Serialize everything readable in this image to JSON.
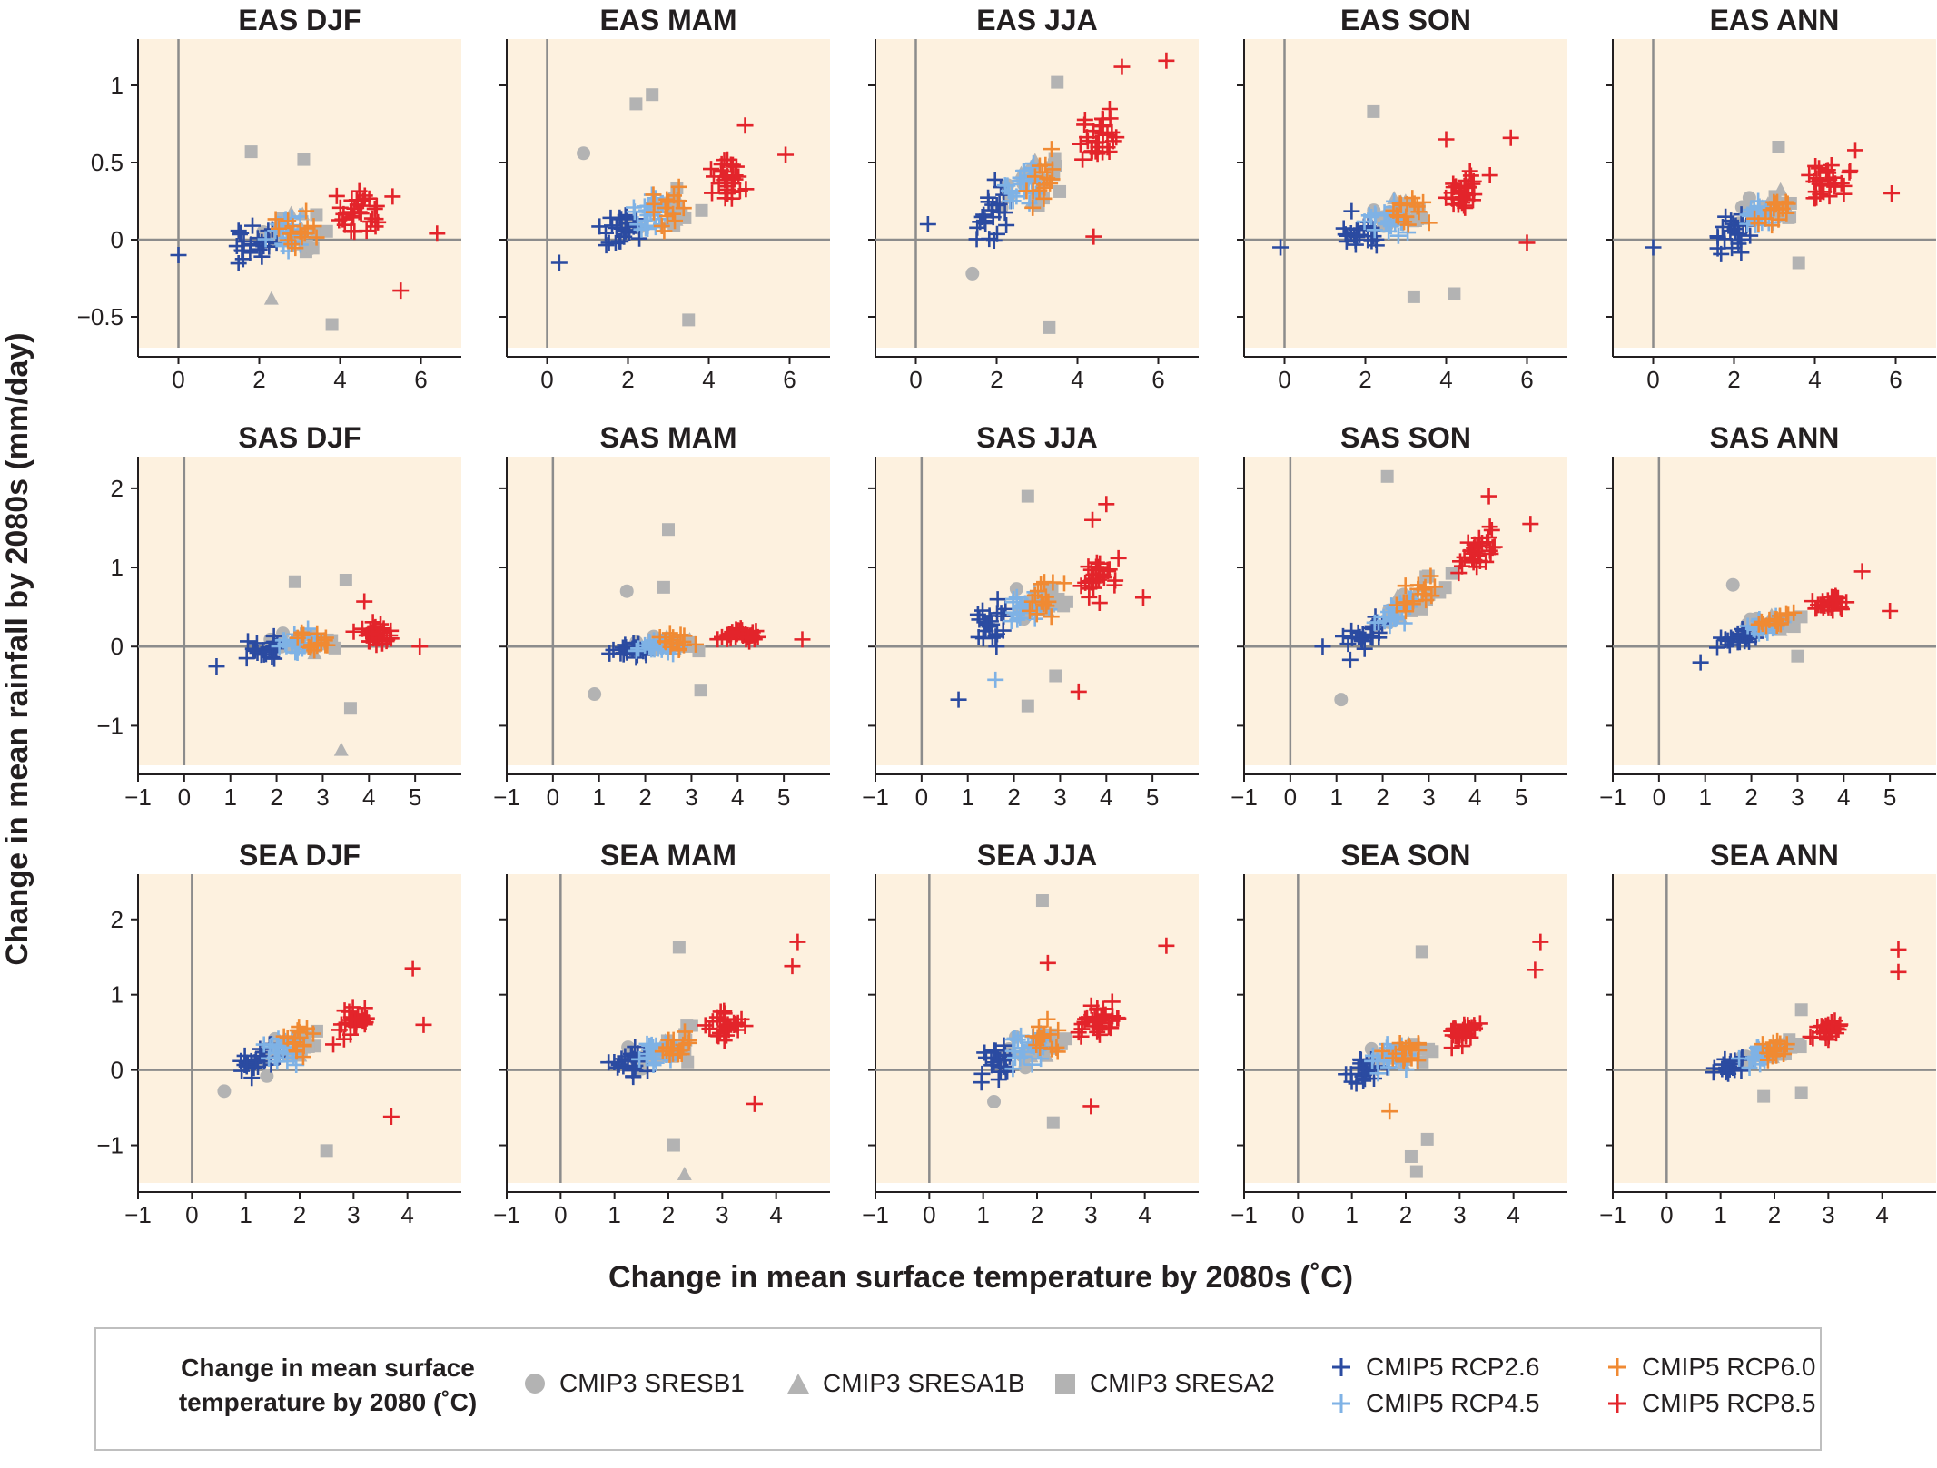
{
  "figure": {
    "ylabel": "Change in mean rainfall by 2080s (mm/day)",
    "xlabel": "Change in mean surface temperature by 2080s (˚C)"
  },
  "legend": {
    "title": "Change in mean surface temperature by 2080 (˚C)",
    "items": [
      {
        "key": "sresb1",
        "label": "CMIP3 SRESB1",
        "marker": "circle",
        "color": "#b3b3b3"
      },
      {
        "key": "sresa1b",
        "label": "CMIP3 SRESA1B",
        "marker": "triangle",
        "color": "#b3b3b3"
      },
      {
        "key": "sresa2",
        "label": "CMIP3 SRESA2",
        "marker": "square",
        "color": "#b3b3b3"
      },
      {
        "key": "rcp26",
        "label": "CMIP5 RCP2.6",
        "marker": "plus",
        "color": "#2b4ba1"
      },
      {
        "key": "rcp45",
        "label": "CMIP5 RCP4.5",
        "marker": "plus",
        "color": "#7fb2e5"
      },
      {
        "key": "rcp60",
        "label": "CMIP5 RCP6.0",
        "marker": "plus",
        "color": "#f08a33"
      },
      {
        "key": "rcp85",
        "label": "CMIP5 RCP8.5",
        "marker": "plus",
        "color": "#e3242b"
      }
    ]
  },
  "chart_data": [
    {
      "type": "scatter",
      "title": "EAS DJF",
      "xlim": [
        -1,
        7
      ],
      "ylim": [
        -0.7,
        1.3
      ],
      "xticks": [
        0,
        2,
        4,
        6
      ],
      "yticks": [
        -0.5,
        0,
        0.5,
        1
      ],
      "yticklabels": [
        "−0.5",
        "0",
        "0.5",
        "1"
      ],
      "spread": {
        "tc": 3.0,
        "tw": 1.3,
        "tmin": 0.0,
        "rc": 0.05,
        "rw": 0.2,
        "slope": 0.0
      },
      "extremes": [
        {
          "series": "rcp26",
          "x": 0,
          "y": -0.1
        },
        {
          "series": "sresa2",
          "x": 1.8,
          "y": 0.57
        },
        {
          "series": "sresa2",
          "x": 3.1,
          "y": 0.52
        },
        {
          "series": "sresa2",
          "x": 3.8,
          "y": -0.55
        },
        {
          "series": "sresa1b",
          "x": 2.3,
          "y": -0.38
        },
        {
          "series": "rcp85",
          "x": 6.4,
          "y": 0.04
        },
        {
          "series": "rcp85",
          "x": 5.5,
          "y": -0.33
        },
        {
          "series": "rcp85",
          "x": 5.3,
          "y": 0.28
        }
      ]
    },
    {
      "type": "scatter",
      "title": "EAS MAM",
      "xlim": [
        -1,
        7
      ],
      "ylim": [
        -0.7,
        1.3
      ],
      "xticks": [
        0,
        2,
        4,
        6
      ],
      "yticks": [
        -0.5,
        0,
        0.5,
        1
      ],
      "yticklabels": [
        "−0.5",
        "0",
        "0.5",
        "1"
      ],
      "spread": {
        "tc": 3.0,
        "tw": 1.3,
        "tmin": 0.2,
        "rc": 0.2,
        "rw": 0.2,
        "slope": 0.05
      },
      "extremes": [
        {
          "series": "sresa2",
          "x": 2.6,
          "y": 0.94
        },
        {
          "series": "sresa2",
          "x": 2.2,
          "y": 0.88
        },
        {
          "series": "sresa2",
          "x": 3.5,
          "y": -0.52
        },
        {
          "series": "rcp85",
          "x": 4.9,
          "y": 0.74
        },
        {
          "series": "rcp85",
          "x": 5.9,
          "y": 0.55
        },
        {
          "series": "sresb1",
          "x": 0.9,
          "y": 0.56
        },
        {
          "series": "rcp26",
          "x": 0.3,
          "y": -0.15
        }
      ]
    },
    {
      "type": "scatter",
      "title": "EAS JJA",
      "xlim": [
        -1,
        7
      ],
      "ylim": [
        -0.7,
        1.3
      ],
      "xticks": [
        0,
        2,
        4,
        6
      ],
      "yticks": [
        -0.5,
        0,
        0.5,
        1
      ],
      "yticklabels": [
        "−0.5",
        "0",
        "0.5",
        "1"
      ],
      "spread": {
        "tc": 3.1,
        "tw": 1.3,
        "tmin": 0.3,
        "rc": 0.4,
        "rw": 0.25,
        "slope": 0.12
      },
      "extremes": [
        {
          "series": "rcp85",
          "x": 6.2,
          "y": 1.16
        },
        {
          "series": "rcp85",
          "x": 5.1,
          "y": 1.12
        },
        {
          "series": "sresa2",
          "x": 3.5,
          "y": 1.02
        },
        {
          "series": "sresa2",
          "x": 3.3,
          "y": -0.57
        },
        {
          "series": "sresb1",
          "x": 1.4,
          "y": -0.22
        },
        {
          "series": "rcp26",
          "x": 0.3,
          "y": 0.1
        },
        {
          "series": "rcp85",
          "x": 4.4,
          "y": 0.02
        }
      ]
    },
    {
      "type": "scatter",
      "title": "EAS SON",
      "xlim": [
        -1,
        7
      ],
      "ylim": [
        -0.7,
        1.3
      ],
      "xticks": [
        0,
        2,
        4,
        6
      ],
      "yticks": [
        -0.5,
        0,
        0.5,
        1
      ],
      "yticklabels": [
        "−0.5",
        "0",
        "0.5",
        "1"
      ],
      "spread": {
        "tc": 3.0,
        "tw": 1.3,
        "tmin": 0.0,
        "rc": 0.15,
        "rw": 0.2,
        "slope": 0.03
      },
      "extremes": [
        {
          "series": "sresa2",
          "x": 2.2,
          "y": 0.83
        },
        {
          "series": "sresa2",
          "x": 3.2,
          "y": -0.37
        },
        {
          "series": "sresa2",
          "x": 4.2,
          "y": -0.35
        },
        {
          "series": "rcp85",
          "x": 5.6,
          "y": 0.66
        },
        {
          "series": "rcp85",
          "x": 4.0,
          "y": 0.65
        },
        {
          "series": "rcp26",
          "x": -0.1,
          "y": -0.05
        },
        {
          "series": "rcp85",
          "x": 6.0,
          "y": -0.02
        }
      ]
    },
    {
      "type": "scatter",
      "title": "EAS ANN",
      "xlim": [
        -1,
        7
      ],
      "ylim": [
        -0.7,
        1.3
      ],
      "xticks": [
        0,
        2,
        4,
        6
      ],
      "yticks": [
        -0.5,
        0,
        0.5,
        1
      ],
      "yticklabels": [
        "−0.5",
        "0",
        "0.5",
        "1"
      ],
      "spread": {
        "tc": 3.0,
        "tw": 1.2,
        "tmin": 0.0,
        "rc": 0.18,
        "rw": 0.15,
        "slope": 0.06
      },
      "extremes": [
        {
          "series": "sresa2",
          "x": 3.1,
          "y": 0.6
        },
        {
          "series": "rcp85",
          "x": 5.0,
          "y": 0.58
        },
        {
          "series": "rcp85",
          "x": 5.9,
          "y": 0.3
        },
        {
          "series": "rcp26",
          "x": 0.0,
          "y": -0.05
        },
        {
          "series": "sresa2",
          "x": 3.6,
          "y": -0.15
        }
      ]
    },
    {
      "type": "scatter",
      "title": "SAS DJF",
      "xlim": [
        -1,
        6
      ],
      "ylim": [
        -1.5,
        2.4
      ],
      "xticks": [
        -1,
        0,
        1,
        2,
        3,
        4,
        5
      ],
      "xticklabels": [
        "−1",
        "0",
        "1",
        "2",
        "3",
        "4",
        "5"
      ],
      "yticks": [
        -1,
        0,
        1,
        2
      ],
      "yticklabels": [
        "−1",
        "0",
        "1",
        "2"
      ],
      "spread": {
        "tc": 2.8,
        "tw": 1.2,
        "tmin": 0.7,
        "rc": 0.05,
        "rw": 0.22,
        "slope": 0.0
      },
      "extremes": [
        {
          "series": "sresa1b",
          "x": 3.4,
          "y": -1.3
        },
        {
          "series": "sresa2",
          "x": 3.6,
          "y": -0.78
        },
        {
          "series": "sresa2",
          "x": 2.4,
          "y": 0.82
        },
        {
          "series": "sresa2",
          "x": 3.5,
          "y": 0.84
        },
        {
          "series": "rcp85",
          "x": 3.9,
          "y": 0.57
        },
        {
          "series": "rcp85",
          "x": 5.1,
          "y": 0.0
        },
        {
          "series": "rcp26",
          "x": 0.7,
          "y": -0.25
        }
      ]
    },
    {
      "type": "scatter",
      "title": "SAS MAM",
      "xlim": [
        -1,
        6
      ],
      "ylim": [
        -1.5,
        2.4
      ],
      "xticks": [
        -1,
        0,
        1,
        2,
        3,
        4,
        5
      ],
      "xticklabels": [
        "−1",
        "0",
        "1",
        "2",
        "3",
        "4",
        "5"
      ],
      "yticks": [
        -1,
        0,
        1,
        2
      ],
      "yticklabels": [
        "−1",
        "0",
        "1",
        "2"
      ],
      "spread": {
        "tc": 2.7,
        "tw": 1.2,
        "tmin": 0.5,
        "rc": 0.02,
        "rw": 0.15,
        "slope": 0.0
      },
      "extremes": [
        {
          "series": "sresa2",
          "x": 2.5,
          "y": 1.48
        },
        {
          "series": "sresa2",
          "x": 2.4,
          "y": 0.75
        },
        {
          "series": "sresb1",
          "x": 1.6,
          "y": 0.7
        },
        {
          "series": "sresb1",
          "x": 0.9,
          "y": -0.6
        },
        {
          "series": "rcp85",
          "x": 5.4,
          "y": 0.09
        },
        {
          "series": "sresa2",
          "x": 3.2,
          "y": -0.55
        }
      ]
    },
    {
      "type": "scatter",
      "title": "SAS JJA",
      "xlim": [
        -1,
        6
      ],
      "ylim": [
        -1.5,
        2.4
      ],
      "xticks": [
        -1,
        0,
        1,
        2,
        3,
        4,
        5
      ],
      "xticklabels": [
        "−1",
        "0",
        "1",
        "2",
        "3",
        "4",
        "5"
      ],
      "yticks": [
        -1,
        0,
        1,
        2
      ],
      "yticklabels": [
        "−1",
        "0",
        "1",
        "2"
      ],
      "spread": {
        "tc": 2.6,
        "tw": 1.1,
        "tmin": 0.5,
        "rc": 0.55,
        "rw": 0.35,
        "slope": 0.15
      },
      "extremes": [
        {
          "series": "sresa2",
          "x": 2.3,
          "y": 1.9
        },
        {
          "series": "rcp85",
          "x": 4.0,
          "y": 1.8
        },
        {
          "series": "rcp85",
          "x": 3.7,
          "y": 1.6
        },
        {
          "series": "rcp26",
          "x": 0.8,
          "y": -0.67
        },
        {
          "series": "rcp45",
          "x": 1.6,
          "y": -0.42
        },
        {
          "series": "sresa2",
          "x": 2.3,
          "y": -0.75
        },
        {
          "series": "sresa2",
          "x": 2.9,
          "y": -0.37
        },
        {
          "series": "rcp85",
          "x": 3.4,
          "y": -0.57
        },
        {
          "series": "rcp85",
          "x": 4.8,
          "y": 0.62
        }
      ]
    },
    {
      "type": "scatter",
      "title": "SAS SON",
      "xlim": [
        -1,
        6
      ],
      "ylim": [
        -1.5,
        2.4
      ],
      "xticks": [
        -1,
        0,
        1,
        2,
        3,
        4,
        5
      ],
      "xticklabels": [
        "−1",
        "0",
        "1",
        "2",
        "3",
        "4",
        "5"
      ],
      "yticks": [
        -1,
        0,
        1,
        2
      ],
      "yticklabels": [
        "−1",
        "0",
        "1",
        "2"
      ],
      "spread": {
        "tc": 2.7,
        "tw": 1.2,
        "tmin": 0.6,
        "rc": 0.6,
        "rw": 0.3,
        "slope": 0.35
      },
      "extremes": [
        {
          "series": "sresa2",
          "x": 2.1,
          "y": 2.15
        },
        {
          "series": "sresb1",
          "x": 1.1,
          "y": -0.67
        },
        {
          "series": "rcp85",
          "x": 5.2,
          "y": 1.55
        },
        {
          "series": "rcp85",
          "x": 4.3,
          "y": 1.9
        },
        {
          "series": "rcp26",
          "x": 0.7,
          "y": 0.0
        }
      ]
    },
    {
      "type": "scatter",
      "title": "SAS ANN",
      "xlim": [
        -1,
        6
      ],
      "ylim": [
        -1.5,
        2.4
      ],
      "xticks": [
        -1,
        0,
        1,
        2,
        3,
        4,
        5
      ],
      "xticklabels": [
        "−1",
        "0",
        "1",
        "2",
        "3",
        "4",
        "5"
      ],
      "yticks": [
        -1,
        0,
        1,
        2
      ],
      "yticklabels": [
        "−1",
        "0",
        "1",
        "2"
      ],
      "spread": {
        "tc": 2.6,
        "tw": 1.0,
        "tmin": 0.8,
        "rc": 0.3,
        "rw": 0.15,
        "slope": 0.12
      },
      "extremes": [
        {
          "series": "sresb1",
          "x": 1.6,
          "y": 0.78
        },
        {
          "series": "rcp85",
          "x": 4.4,
          "y": 0.95
        },
        {
          "series": "rcp85",
          "x": 5.0,
          "y": 0.45
        },
        {
          "series": "rcp26",
          "x": 0.9,
          "y": -0.2
        },
        {
          "series": "sresa2",
          "x": 3.0,
          "y": -0.12
        }
      ]
    },
    {
      "type": "scatter",
      "title": "SEA DJF",
      "xlim": [
        -1,
        5
      ],
      "ylim": [
        -1.5,
        2.6
      ],
      "xticks": [
        -1,
        0,
        1,
        2,
        3,
        4
      ],
      "xticklabels": [
        "−1",
        "0",
        "1",
        "2",
        "3",
        "4"
      ],
      "yticks": [
        -1,
        0,
        1,
        2
      ],
      "yticklabels": [
        "−1",
        "0",
        "1",
        "2"
      ],
      "spread": {
        "tc": 2.0,
        "tw": 0.9,
        "tmin": 0.6,
        "rc": 0.35,
        "rw": 0.35,
        "slope": 0.2
      },
      "extremes": [
        {
          "series": "rcp85",
          "x": 4.1,
          "y": 1.35
        },
        {
          "series": "rcp85",
          "x": 4.3,
          "y": 0.6
        },
        {
          "series": "rcp85",
          "x": 3.7,
          "y": -0.62
        },
        {
          "series": "sresa2",
          "x": 2.5,
          "y": -1.07
        },
        {
          "series": "sresb1",
          "x": 0.6,
          "y": -0.28
        }
      ]
    },
    {
      "type": "scatter",
      "title": "SEA MAM",
      "xlim": [
        -1,
        5
      ],
      "ylim": [
        -1.5,
        2.6
      ],
      "xticks": [
        -1,
        0,
        1,
        2,
        3,
        4
      ],
      "xticklabels": [
        "−1",
        "0",
        "1",
        "2",
        "3",
        "4"
      ],
      "yticks": [
        -1,
        0,
        1,
        2
      ],
      "yticklabels": [
        "−1",
        "0",
        "1",
        "2"
      ],
      "spread": {
        "tc": 2.1,
        "tw": 0.9,
        "tmin": 0.7,
        "rc": 0.3,
        "rw": 0.3,
        "slope": 0.18
      },
      "extremes": [
        {
          "series": "rcp85",
          "x": 4.4,
          "y": 1.7
        },
        {
          "series": "rcp85",
          "x": 4.3,
          "y": 1.38
        },
        {
          "series": "sresa2",
          "x": 2.2,
          "y": 1.63
        },
        {
          "series": "sresa2",
          "x": 2.1,
          "y": -1.0
        },
        {
          "series": "sresa1b",
          "x": 2.3,
          "y": -1.38
        },
        {
          "series": "rcp85",
          "x": 3.6,
          "y": -0.45
        }
      ]
    },
    {
      "type": "scatter",
      "title": "SEA JJA",
      "xlim": [
        -1,
        5
      ],
      "ylim": [
        -1.5,
        2.6
      ],
      "xticks": [
        -1,
        0,
        1,
        2,
        3,
        4
      ],
      "xticklabels": [
        "−1",
        "0",
        "1",
        "2",
        "3",
        "4"
      ],
      "yticks": [
        -1,
        0,
        1,
        2
      ],
      "yticklabels": [
        "−1",
        "0",
        "1",
        "2"
      ],
      "spread": {
        "tc": 2.1,
        "tw": 0.9,
        "tmin": 0.6,
        "rc": 0.35,
        "rw": 0.35,
        "slope": 0.2
      },
      "extremes": [
        {
          "series": "sresa2",
          "x": 2.1,
          "y": 2.25
        },
        {
          "series": "rcp85",
          "x": 4.4,
          "y": 1.65
        },
        {
          "series": "rcp85",
          "x": 2.2,
          "y": 1.42
        },
        {
          "series": "sresa2",
          "x": 2.3,
          "y": -0.7
        },
        {
          "series": "rcp85",
          "x": 3.0,
          "y": -0.48
        },
        {
          "series": "sresb1",
          "x": 1.2,
          "y": -0.42
        }
      ]
    },
    {
      "type": "scatter",
      "title": "SEA SON",
      "xlim": [
        -1,
        5
      ],
      "ylim": [
        -1.5,
        2.6
      ],
      "xticks": [
        -1,
        0,
        1,
        2,
        3,
        4
      ],
      "xticklabels": [
        "−1",
        "0",
        "1",
        "2",
        "3",
        "4"
      ],
      "yticks": [
        -1,
        0,
        1,
        2
      ],
      "yticklabels": [
        "−1",
        "0",
        "1",
        "2"
      ],
      "spread": {
        "tc": 2.0,
        "tw": 0.9,
        "tmin": 0.6,
        "rc": 0.2,
        "rw": 0.25,
        "slope": 0.15
      },
      "extremes": [
        {
          "series": "sresa2",
          "x": 2.3,
          "y": 1.57
        },
        {
          "series": "sresa2",
          "x": 2.2,
          "y": -1.35
        },
        {
          "series": "sresa2",
          "x": 2.1,
          "y": -1.15
        },
        {
          "series": "sresa2",
          "x": 2.4,
          "y": -0.92
        },
        {
          "series": "rcp85",
          "x": 4.5,
          "y": 1.7
        },
        {
          "series": "rcp85",
          "x": 4.4,
          "y": 1.33
        },
        {
          "series": "rcp60",
          "x": 1.7,
          "y": -0.55
        }
      ]
    },
    {
      "type": "scatter",
      "title": "SEA ANN",
      "xlim": [
        -1,
        5
      ],
      "ylim": [
        -1.5,
        2.6
      ],
      "xticks": [
        -1,
        0,
        1,
        2,
        3,
        4
      ],
      "xticklabels": [
        "−1",
        "0",
        "1",
        "2",
        "3",
        "4"
      ],
      "yticks": [
        -1,
        0,
        1,
        2
      ],
      "yticklabels": [
        "−1",
        "0",
        "1",
        "2"
      ],
      "spread": {
        "tc": 2.0,
        "tw": 0.9,
        "tmin": 0.6,
        "rc": 0.25,
        "rw": 0.2,
        "slope": 0.18
      },
      "extremes": [
        {
          "series": "rcp85",
          "x": 4.3,
          "y": 1.6
        },
        {
          "series": "rcp85",
          "x": 4.3,
          "y": 1.3
        },
        {
          "series": "sresa2",
          "x": 1.8,
          "y": -0.35
        },
        {
          "series": "sresa2",
          "x": 2.5,
          "y": -0.3
        },
        {
          "series": "sresa2",
          "x": 2.5,
          "y": 0.8
        }
      ]
    }
  ]
}
